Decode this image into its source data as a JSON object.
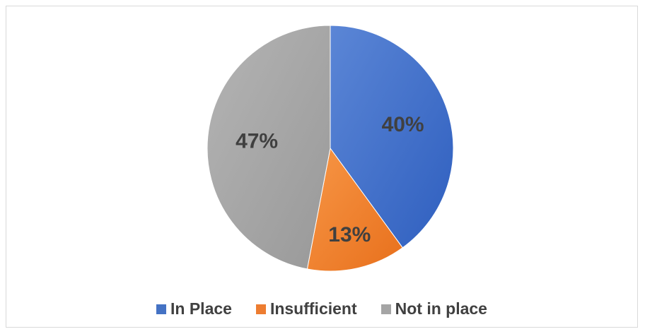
{
  "chart_data": {
    "type": "pie",
    "title": "",
    "slices": [
      {
        "name": "In Place",
        "value": 40,
        "label": "40%",
        "color": "#4472C4"
      },
      {
        "name": "Insufficient",
        "value": 13,
        "label": "13%",
        "color": "#ED7D31"
      },
      {
        "name": "Not in place",
        "value": 47,
        "label": "47%",
        "color": "#A5A5A5"
      }
    ],
    "legend_position": "bottom",
    "start_angle_deg": 0,
    "direction": "clockwise"
  },
  "legend": {
    "items": [
      {
        "label": "In Place",
        "color": "#4472C4"
      },
      {
        "label": "Insufficient",
        "color": "#ED7D31"
      },
      {
        "label": "Not in place",
        "color": "#A5A5A5"
      }
    ]
  }
}
